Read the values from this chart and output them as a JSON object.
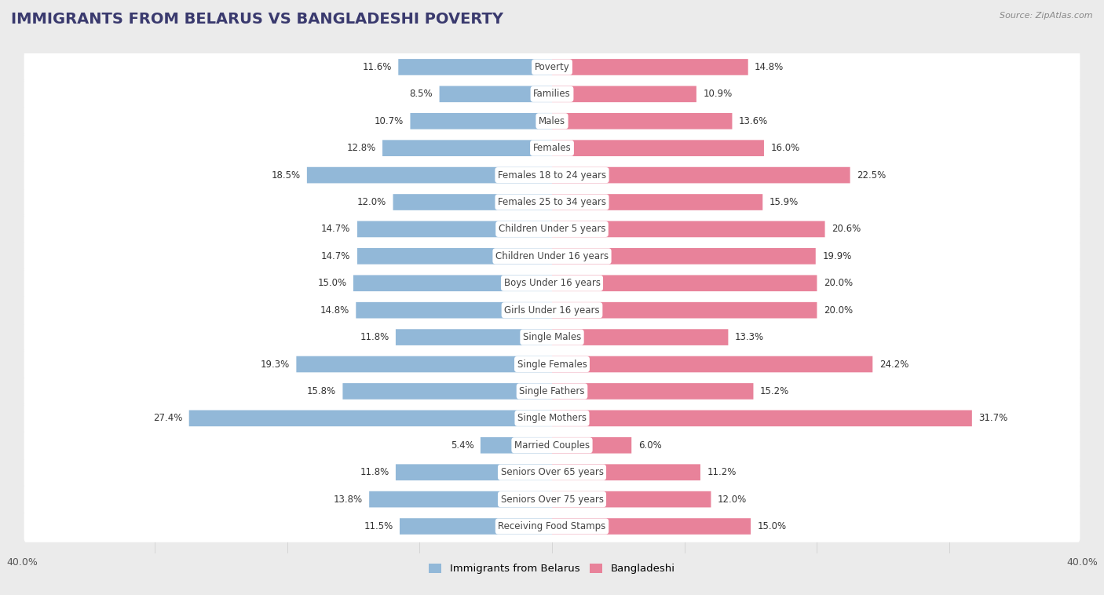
{
  "title": "IMMIGRANTS FROM BELARUS VS BANGLADESHI POVERTY",
  "source": "Source: ZipAtlas.com",
  "categories": [
    "Poverty",
    "Families",
    "Males",
    "Females",
    "Females 18 to 24 years",
    "Females 25 to 34 years",
    "Children Under 5 years",
    "Children Under 16 years",
    "Boys Under 16 years",
    "Girls Under 16 years",
    "Single Males",
    "Single Females",
    "Single Fathers",
    "Single Mothers",
    "Married Couples",
    "Seniors Over 65 years",
    "Seniors Over 75 years",
    "Receiving Food Stamps"
  ],
  "left_values": [
    11.6,
    8.5,
    10.7,
    12.8,
    18.5,
    12.0,
    14.7,
    14.7,
    15.0,
    14.8,
    11.8,
    19.3,
    15.8,
    27.4,
    5.4,
    11.8,
    13.8,
    11.5
  ],
  "right_values": [
    14.8,
    10.9,
    13.6,
    16.0,
    22.5,
    15.9,
    20.6,
    19.9,
    20.0,
    20.0,
    13.3,
    24.2,
    15.2,
    31.7,
    6.0,
    11.2,
    12.0,
    15.0
  ],
  "left_color": "#92b8d8",
  "right_color": "#e8829a",
  "axis_max": 40.0,
  "background_color": "#ebebeb",
  "bar_background": "#ffffff",
  "legend_left": "Immigrants from Belarus",
  "legend_right": "Bangladeshi",
  "title_fontsize": 14,
  "label_fontsize": 8.5,
  "value_fontsize": 8.5
}
